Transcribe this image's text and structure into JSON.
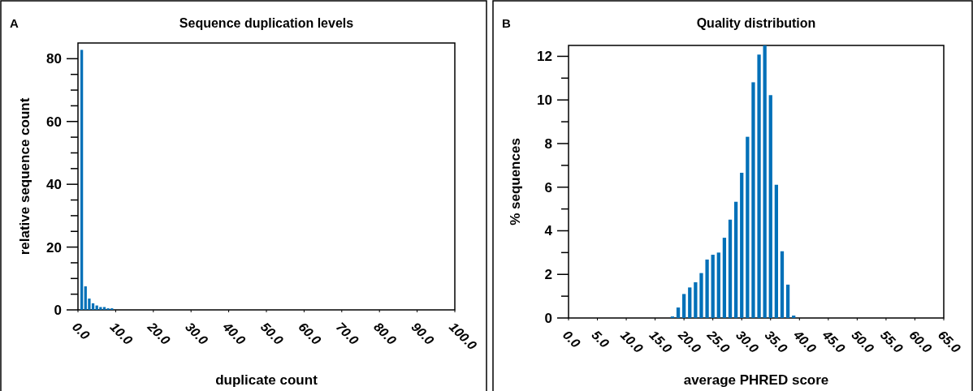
{
  "chart_data": [
    {
      "type": "bar",
      "title": "Sequence duplication levels",
      "xlabel": "duplicate count",
      "ylabel": "relative sequence count",
      "annotations": [
        "A"
      ],
      "color": "#0070b8",
      "x": [
        1,
        2,
        3,
        4,
        5,
        6,
        7,
        8,
        9
      ],
      "values": [
        82.8,
        7.5,
        3.6,
        2.1,
        1.4,
        0.9,
        0.9,
        0.5,
        0.5
      ],
      "xlim": [
        0,
        100
      ],
      "xticks": [
        {
          "value": 0,
          "label": "0.0"
        },
        {
          "value": 10,
          "label": "10.0"
        },
        {
          "value": 20,
          "label": "20.0"
        },
        {
          "value": 30,
          "label": "30.0"
        },
        {
          "value": 40,
          "label": "40.0"
        },
        {
          "value": 50,
          "label": "50.0"
        },
        {
          "value": 60,
          "label": "60.0"
        },
        {
          "value": 70,
          "label": "70.0"
        },
        {
          "value": 80,
          "label": "80.0"
        },
        {
          "value": 90,
          "label": "90.0"
        },
        {
          "value": 100,
          "label": "100.0"
        }
      ],
      "ylim": [
        0,
        85
      ],
      "yticks": [
        0,
        {
          "value": 5,
          "label": null
        },
        {
          "value": 10,
          "label": null
        },
        {
          "value": 15,
          "label": null
        },
        20,
        {
          "value": 25,
          "label": null
        },
        {
          "value": 30,
          "label": null
        },
        {
          "value": 35,
          "label": null
        },
        40,
        {
          "value": 45,
          "label": null
        },
        {
          "value": 50,
          "label": null
        },
        {
          "value": 55,
          "label": null
        },
        60,
        {
          "value": 65,
          "label": null
        },
        {
          "value": 70,
          "label": null
        },
        {
          "value": 75,
          "label": null
        },
        80
      ]
    },
    {
      "type": "bar",
      "title": "Quality distribution",
      "xlabel": "average PHRED score",
      "ylabel": "% sequences",
      "annotations": [
        "B"
      ],
      "color": "#0070b8",
      "x": [
        18,
        19,
        20,
        21,
        22,
        23,
        24,
        25,
        26,
        27,
        28,
        29,
        30,
        31,
        32,
        33,
        34,
        35,
        36,
        37,
        38,
        39
      ],
      "values": [
        0.07,
        0.48,
        1.1,
        1.4,
        1.64,
        2.06,
        2.68,
        2.9,
        3.0,
        3.68,
        4.51,
        5.33,
        6.66,
        8.31,
        10.81,
        12.08,
        12.5,
        10.22,
        6.11,
        3.06,
        1.53,
        0.11
      ],
      "xlim": [
        0,
        65
      ],
      "xticks": [
        {
          "value": 0,
          "label": "0.0"
        },
        {
          "value": 5,
          "label": "5.0"
        },
        {
          "value": 10,
          "label": "10.0"
        },
        {
          "value": 15,
          "label": "15.0"
        },
        {
          "value": 20,
          "label": "20.0"
        },
        {
          "value": 25,
          "label": "25.0"
        },
        {
          "value": 30,
          "label": "30.0"
        },
        {
          "value": 35,
          "label": "35.0"
        },
        {
          "value": 40,
          "label": "40.0"
        },
        {
          "value": 45,
          "label": "45.0"
        },
        {
          "value": 50,
          "label": "50.0"
        },
        {
          "value": 55,
          "label": "55.0"
        },
        {
          "value": 60,
          "label": "60.0"
        },
        {
          "value": 65,
          "label": "65.0"
        }
      ],
      "ylim": [
        0,
        12.5
      ],
      "yticks": [
        0,
        {
          "value": 1,
          "label": null
        },
        2,
        {
          "value": 3,
          "label": null
        },
        4,
        {
          "value": 5,
          "label": null
        },
        6,
        {
          "value": 7,
          "label": null
        },
        8,
        {
          "value": 9,
          "label": null
        },
        10,
        {
          "value": 11,
          "label": null
        },
        12
      ]
    }
  ]
}
